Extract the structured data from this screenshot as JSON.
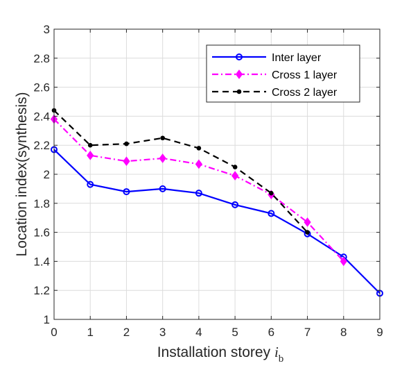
{
  "chart_data": {
    "type": "line",
    "title": "",
    "xlabel": "Installation storey ",
    "xlabel_symbol": "i",
    "xlabel_subscript": "b",
    "ylabel": "Location index(synthesis)",
    "xlim": [
      0,
      9
    ],
    "ylim": [
      1,
      3
    ],
    "x_ticks": [
      "0",
      "1",
      "2",
      "3",
      "4",
      "5",
      "6",
      "7",
      "8",
      "9"
    ],
    "y_ticks": [
      "1",
      "1.2",
      "1.4",
      "1.6",
      "1.8",
      "2",
      "2.2",
      "2.4",
      "2.6",
      "2.8",
      "3"
    ],
    "grid": true,
    "legend_position": "top-right",
    "series": [
      {
        "name": "Inter layer",
        "color": "#0000ff",
        "line_style": "solid",
        "marker": "circle",
        "x": [
          0,
          1,
          2,
          3,
          4,
          5,
          6,
          7,
          8,
          9
        ],
        "y": [
          2.17,
          1.93,
          1.88,
          1.9,
          1.87,
          1.79,
          1.73,
          1.59,
          1.43,
          1.18
        ]
      },
      {
        "name": "Cross 1 layer",
        "color": "#ff00ff",
        "line_style": "dashdot",
        "marker": "diamond",
        "x": [
          0,
          1,
          2,
          3,
          4,
          5,
          6,
          7,
          8
        ],
        "y": [
          2.38,
          2.13,
          2.09,
          2.11,
          2.07,
          1.99,
          1.86,
          1.67,
          1.4
        ]
      },
      {
        "name": "Cross 2 layer",
        "color": "#000000",
        "line_style": "dashed",
        "marker": "dot",
        "x": [
          0,
          1,
          2,
          3,
          4,
          5,
          6,
          7
        ],
        "y": [
          2.44,
          2.2,
          2.21,
          2.25,
          2.18,
          2.05,
          1.87,
          1.6
        ]
      }
    ]
  }
}
